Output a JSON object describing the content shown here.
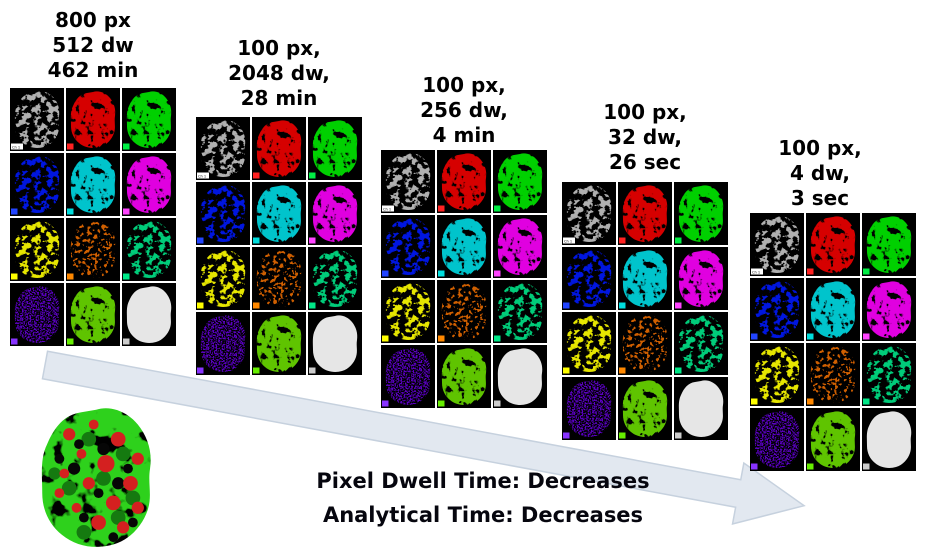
{
  "groups": [
    {
      "line1": "800 px",
      "line2": "512 dw",
      "line3": "462 min"
    },
    {
      "line1": "100 px,",
      "line2": "2048 dw,",
      "line3": "28 min"
    },
    {
      "line1": "100 px,",
      "line2": "256 dw,",
      "line3": "4 min"
    },
    {
      "line1": "100 px,",
      "line2": "32 dw,",
      "line3": "26 sec"
    },
    {
      "line1": "100 px,",
      "line2": "4 dw,",
      "line3": "3 sec"
    }
  ],
  "caption": {
    "line1": "Pixel Dwell Time: Decreases",
    "line2": "Analytical Time: Decreases"
  },
  "panel_colors": [
    {
      "name": "bse-gray",
      "fill": "#b0b0b0",
      "chip": "#ffffff",
      "chip_label": "Ch 1",
      "tex": "sparse"
    },
    {
      "name": "red",
      "fill": "#d60000",
      "chip": "#ff2222",
      "tex": "dense"
    },
    {
      "name": "green",
      "fill": "#00d000",
      "chip": "#00ee44",
      "tex": "dense"
    },
    {
      "name": "blue",
      "fill": "#0018e0",
      "chip": "#2244ff",
      "tex": "sparse"
    },
    {
      "name": "cyan",
      "fill": "#00c4cc",
      "chip": "#00dddd",
      "tex": "dense"
    },
    {
      "name": "magenta",
      "fill": "#e000e0",
      "chip": "#ff44ff",
      "tex": "dense"
    },
    {
      "name": "yellow",
      "fill": "#e6e600",
      "chip": "#ffff00",
      "tex": "sparse"
    },
    {
      "name": "orange",
      "fill": "#d06000",
      "chip": "#ff8800",
      "tex": "web"
    },
    {
      "name": "spring-green",
      "fill": "#00cc7a",
      "chip": "#00e888",
      "tex": "sparse"
    },
    {
      "name": "purple",
      "fill": "#5c00c4",
      "chip": "#8833ff",
      "tex": "noise"
    },
    {
      "name": "lime",
      "fill": "#5fc400",
      "chip": "#66ee00",
      "tex": "dense"
    },
    {
      "name": "white",
      "fill": "#e6e6e6",
      "chip": "#cccccc",
      "tex": "none"
    }
  ],
  "colors": {
    "arrow_fill": "#e2e8f0",
    "arrow_stroke": "#c6d1de",
    "label_text": "#000000",
    "caption_text": "#06060e",
    "composite_base": "#2fd11c",
    "composite_red": "#d42020",
    "composite_dark_green": "#157a10",
    "composite_black": "#060606"
  }
}
